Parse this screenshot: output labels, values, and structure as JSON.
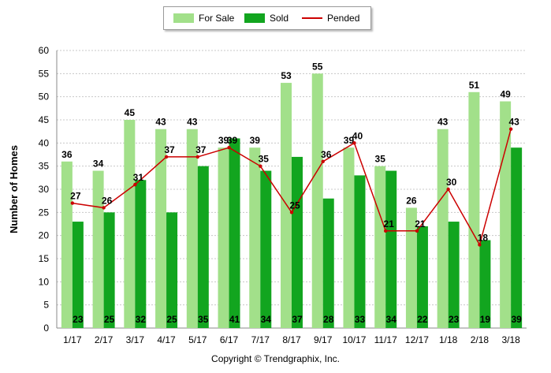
{
  "chart_data": {
    "type": "bar",
    "categories": [
      "1/17",
      "2/17",
      "3/17",
      "4/17",
      "5/17",
      "6/17",
      "7/17",
      "8/17",
      "9/17",
      "10/17",
      "11/17",
      "12/17",
      "1/18",
      "2/18",
      "3/18"
    ],
    "series": [
      {
        "name": "For Sale",
        "type": "bar",
        "color": "#a2e08a",
        "values": [
          36,
          34,
          45,
          43,
          43,
          39,
          39,
          53,
          55,
          39,
          35,
          26,
          43,
          51,
          49
        ]
      },
      {
        "name": "Sold",
        "type": "bar",
        "color": "#12a51f",
        "values": [
          23,
          25,
          32,
          25,
          35,
          41,
          34,
          37,
          28,
          33,
          34,
          22,
          23,
          19,
          39
        ]
      },
      {
        "name": "Pended",
        "type": "line",
        "color": "#cc0000",
        "values": [
          27,
          26,
          31,
          37,
          37,
          39,
          35,
          25,
          36,
          40,
          21,
          21,
          30,
          18,
          43
        ]
      }
    ],
    "ylabel": "Number of Homes",
    "xlabel": "",
    "ylim": [
      0,
      60
    ],
    "yticks": [
      0,
      5,
      10,
      15,
      20,
      25,
      30,
      35,
      40,
      45,
      50,
      55,
      60
    ],
    "grid": true,
    "legend": "top-center"
  },
  "footer": {
    "copyright": "Copyright © Trendgraphix, Inc."
  }
}
